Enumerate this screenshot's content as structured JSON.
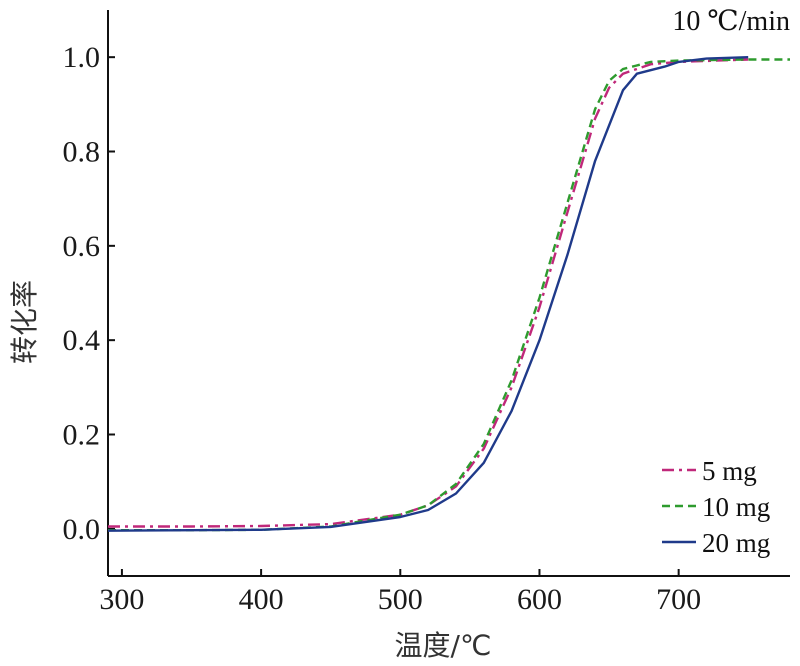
{
  "chart_data": {
    "type": "line",
    "title": "",
    "annotation": "10 ℃/min",
    "xlabel": "温度/℃",
    "ylabel": "转化率",
    "xlim": [
      290,
      780
    ],
    "ylim": [
      -0.1,
      1.1
    ],
    "xticks": [
      300,
      400,
      500,
      600,
      700
    ],
    "yticks": [
      0.0,
      0.2,
      0.4,
      0.6,
      0.8,
      1.0
    ],
    "ytick_labels": [
      "0.0",
      "0.2",
      "0.4",
      "0.6",
      "0.8",
      "1.0"
    ],
    "grid": false,
    "legend_position": "bottom-right",
    "series": [
      {
        "name": "5 mg",
        "color": "#c0287a",
        "dash": "dash-dot",
        "x": [
          290,
          350,
          400,
          450,
          500,
          520,
          540,
          560,
          580,
          600,
          620,
          640,
          650,
          660,
          680,
          700,
          750
        ],
        "y": [
          0.005,
          0.005,
          0.006,
          0.01,
          0.03,
          0.05,
          0.09,
          0.17,
          0.3,
          0.47,
          0.67,
          0.87,
          0.935,
          0.965,
          0.985,
          0.99,
          0.995
        ]
      },
      {
        "name": "10 mg",
        "color": "#2e9b2e",
        "dash": "dash",
        "x": [
          290,
          350,
          400,
          450,
          500,
          520,
          540,
          560,
          580,
          600,
          620,
          640,
          650,
          660,
          680,
          700,
          750,
          780
        ],
        "y": [
          -0.003,
          -0.003,
          -0.002,
          0.005,
          0.03,
          0.05,
          0.095,
          0.18,
          0.315,
          0.49,
          0.69,
          0.89,
          0.95,
          0.975,
          0.99,
          0.993,
          0.995,
          0.995
        ]
      },
      {
        "name": "20 mg",
        "color": "#1f3a8a",
        "dash": "solid",
        "x": [
          290,
          350,
          400,
          450,
          500,
          520,
          540,
          560,
          580,
          600,
          620,
          640,
          660,
          670,
          690,
          700,
          720,
          750
        ],
        "y": [
          -0.004,
          -0.003,
          -0.002,
          0.004,
          0.025,
          0.04,
          0.075,
          0.14,
          0.25,
          0.4,
          0.58,
          0.78,
          0.93,
          0.965,
          0.98,
          0.99,
          0.997,
          1.0
        ]
      }
    ]
  }
}
